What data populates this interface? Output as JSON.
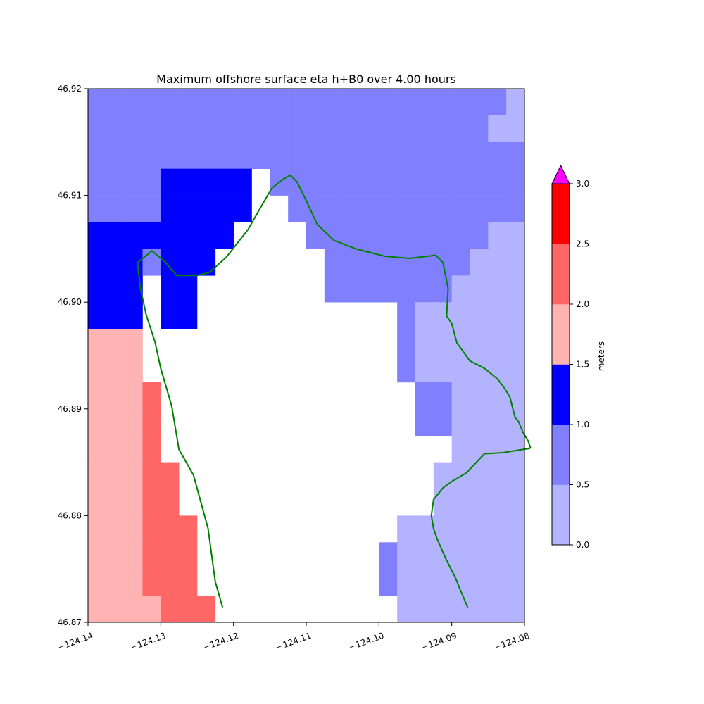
{
  "chart_data": {
    "type": "heatmap",
    "title": "Maximum offshore surface eta h+B0 over 4.00 hours",
    "xlabel": "",
    "ylabel": "",
    "xlim": [
      -124.14,
      -124.08
    ],
    "ylim": [
      46.87,
      46.92
    ],
    "x_ticks": [
      "−124.14",
      "−124.13",
      "−124.12",
      "−124.11",
      "−124.10",
      "−124.09",
      "−124.08"
    ],
    "y_ticks": [
      "46.87",
      "46.88",
      "46.89",
      "46.90",
      "46.91",
      "46.92"
    ],
    "x_tick_values": [
      -124.14,
      -124.13,
      -124.12,
      -124.11,
      -124.1,
      -124.09,
      -124.08
    ],
    "y_tick_values": [
      46.87,
      46.88,
      46.89,
      46.9,
      46.91,
      46.92
    ],
    "grid": false,
    "cell_grid": {
      "x0": -124.14,
      "dx": 0.0025,
      "cols": 24,
      "y_top": 46.92,
      "dy": 0.0025,
      "rows": 20,
      "note_levels": "level index: 0=0.0-0.5, 1=0.5-1.0, 2=1.0-1.5, 3=1.5-2.0, 4=2.0-2.5, 5=2.5-3.0, null=no data",
      "values": [
        [
          1,
          1,
          1,
          1,
          1,
          1,
          1,
          1,
          1,
          1,
          1,
          1,
          1,
          1,
          1,
          1,
          1,
          1,
          1,
          1,
          1,
          1,
          1,
          0
        ],
        [
          1,
          1,
          1,
          1,
          1,
          1,
          1,
          1,
          1,
          1,
          1,
          1,
          1,
          1,
          1,
          1,
          1,
          1,
          1,
          1,
          1,
          1,
          0,
          0
        ],
        [
          1,
          1,
          1,
          1,
          1,
          1,
          1,
          1,
          1,
          1,
          1,
          1,
          1,
          1,
          1,
          1,
          1,
          1,
          1,
          1,
          1,
          1,
          1,
          1
        ],
        [
          1,
          1,
          1,
          1,
          2,
          2,
          2,
          2,
          2,
          null,
          1,
          1,
          1,
          1,
          1,
          1,
          1,
          1,
          1,
          1,
          1,
          1,
          1,
          1
        ],
        [
          1,
          1,
          1,
          1,
          2,
          2,
          2,
          2,
          2,
          null,
          null,
          1,
          1,
          1,
          1,
          1,
          1,
          1,
          1,
          1,
          1,
          1,
          1,
          1
        ],
        [
          2,
          2,
          2,
          2,
          2,
          2,
          2,
          2,
          null,
          null,
          null,
          null,
          1,
          1,
          1,
          1,
          1,
          1,
          1,
          1,
          1,
          1,
          0,
          0
        ],
        [
          2,
          2,
          2,
          1,
          2,
          2,
          2,
          null,
          null,
          null,
          null,
          null,
          null,
          1,
          1,
          1,
          1,
          1,
          1,
          1,
          1,
          0,
          0,
          0
        ],
        [
          2,
          2,
          2,
          null,
          2,
          2,
          null,
          null,
          null,
          null,
          null,
          null,
          null,
          1,
          1,
          1,
          1,
          1,
          1,
          1,
          0,
          0,
          0,
          0
        ],
        [
          2,
          2,
          2,
          null,
          2,
          2,
          null,
          null,
          null,
          null,
          null,
          null,
          null,
          null,
          null,
          null,
          null,
          1,
          0,
          0,
          0,
          0,
          0,
          0
        ],
        [
          3,
          3,
          3,
          null,
          null,
          null,
          null,
          null,
          null,
          null,
          null,
          null,
          null,
          null,
          null,
          null,
          null,
          1,
          0,
          0,
          0,
          0,
          0,
          0
        ],
        [
          3,
          3,
          3,
          null,
          null,
          null,
          null,
          null,
          null,
          null,
          null,
          null,
          null,
          null,
          null,
          null,
          null,
          1,
          0,
          0,
          0,
          0,
          0,
          0
        ],
        [
          3,
          3,
          3,
          4,
          null,
          null,
          null,
          null,
          null,
          null,
          null,
          null,
          null,
          null,
          null,
          null,
          null,
          null,
          1,
          1,
          0,
          0,
          0,
          0
        ],
        [
          3,
          3,
          3,
          4,
          null,
          null,
          null,
          null,
          null,
          null,
          null,
          null,
          null,
          null,
          null,
          null,
          null,
          null,
          1,
          1,
          0,
          0,
          0,
          0
        ],
        [
          3,
          3,
          3,
          4,
          null,
          null,
          null,
          null,
          null,
          null,
          null,
          null,
          null,
          null,
          null,
          null,
          null,
          null,
          null,
          null,
          0,
          0,
          0,
          0
        ],
        [
          3,
          3,
          3,
          4,
          4,
          null,
          null,
          null,
          null,
          null,
          null,
          null,
          null,
          null,
          null,
          null,
          null,
          null,
          null,
          0,
          0,
          0,
          0,
          0
        ],
        [
          3,
          3,
          3,
          4,
          4,
          null,
          null,
          null,
          null,
          null,
          null,
          null,
          null,
          null,
          null,
          null,
          null,
          null,
          null,
          0,
          0,
          0,
          0,
          0
        ],
        [
          3,
          3,
          3,
          4,
          4,
          4,
          null,
          null,
          null,
          null,
          null,
          null,
          null,
          null,
          null,
          null,
          null,
          0,
          0,
          0,
          0,
          0,
          0,
          0
        ],
        [
          3,
          3,
          3,
          4,
          4,
          4,
          null,
          null,
          null,
          null,
          null,
          null,
          null,
          null,
          null,
          null,
          1,
          0,
          0,
          0,
          0,
          0,
          0,
          0
        ],
        [
          3,
          3,
          3,
          4,
          4,
          4,
          null,
          null,
          null,
          null,
          null,
          null,
          null,
          null,
          null,
          null,
          1,
          0,
          0,
          0,
          0,
          0,
          0,
          0
        ],
        [
          3,
          3,
          3,
          3,
          4,
          4,
          4,
          null,
          null,
          null,
          null,
          null,
          null,
          null,
          null,
          null,
          null,
          0,
          0,
          0,
          0,
          0,
          0,
          0
        ]
      ]
    },
    "colorbar": {
      "label": "meters",
      "levels": [
        0.0,
        0.5,
        1.0,
        1.5,
        2.0,
        2.5,
        3.0
      ],
      "tick_labels": [
        "0.0",
        "0.5",
        "1.0",
        "1.5",
        "2.0",
        "2.5",
        "3.0"
      ],
      "colors": [
        "#b3b3ff",
        "#8080ff",
        "#0000ff",
        "#ffb3b3",
        "#ff6666",
        "#ff0000"
      ],
      "extend_max_color": "#ff00ff"
    },
    "shoreline_color": "#008000",
    "shoreline": [
      [
        -124.1215,
        46.8714
      ],
      [
        -124.1225,
        46.8738
      ],
      [
        -124.1235,
        46.8788
      ],
      [
        -124.1255,
        46.8838
      ],
      [
        -124.1275,
        46.8862
      ],
      [
        -124.1285,
        46.8903
      ],
      [
        -124.13,
        46.8938
      ],
      [
        -124.1308,
        46.8963
      ],
      [
        -124.132,
        46.8988
      ],
      [
        -124.1328,
        46.9013
      ],
      [
        -124.1332,
        46.9037
      ],
      [
        -124.1312,
        46.9048
      ],
      [
        -124.1293,
        46.9037
      ],
      [
        -124.1278,
        46.9025
      ],
      [
        -124.125,
        46.9025
      ],
      [
        -124.1233,
        46.9028
      ],
      [
        -124.121,
        46.9042
      ],
      [
        -124.118,
        46.9068
      ],
      [
        -124.116,
        46.9092
      ],
      [
        -124.1147,
        46.9107
      ],
      [
        -124.1132,
        46.9115
      ],
      [
        -124.1122,
        46.9119
      ],
      [
        -124.1113,
        46.9113
      ],
      [
        -124.1102,
        46.9098
      ],
      [
        -124.1085,
        46.9073
      ],
      [
        -124.1062,
        46.9058
      ],
      [
        -124.1032,
        46.905
      ],
      [
        -124.0992,
        46.9043
      ],
      [
        -124.0958,
        46.9041
      ],
      [
        -124.0922,
        46.9044
      ],
      [
        -124.0912,
        46.9037
      ],
      [
        -124.0905,
        46.9013
      ],
      [
        -124.0907,
        46.8987
      ],
      [
        -124.09,
        46.898
      ],
      [
        -124.0893,
        46.8962
      ],
      [
        -124.0875,
        46.8945
      ],
      [
        -124.0855,
        46.8938
      ],
      [
        -124.0837,
        46.8928
      ],
      [
        -124.0827,
        46.8919
      ],
      [
        -124.082,
        46.8911
      ],
      [
        -124.0813,
        46.8892
      ],
      [
        -124.0808,
        46.8888
      ],
      [
        -124.0802,
        46.8878
      ],
      [
        -124.0795,
        46.887
      ],
      [
        -124.0792,
        46.8864
      ],
      [
        -124.0793,
        46.8863
      ],
      [
        -124.083,
        46.8859
      ],
      [
        -124.0855,
        46.8858
      ],
      [
        -124.088,
        46.884
      ],
      [
        -124.09,
        46.8832
      ],
      [
        -124.0912,
        46.8826
      ],
      [
        -124.0925,
        46.8815
      ],
      [
        -124.0928,
        46.88
      ],
      [
        -124.0925,
        46.8788
      ],
      [
        -124.092,
        46.8778
      ],
      [
        -124.0907,
        46.8758
      ],
      [
        -124.0895,
        46.8742
      ],
      [
        -124.0888,
        46.873
      ],
      [
        -124.0878,
        46.8714
      ]
    ]
  }
}
